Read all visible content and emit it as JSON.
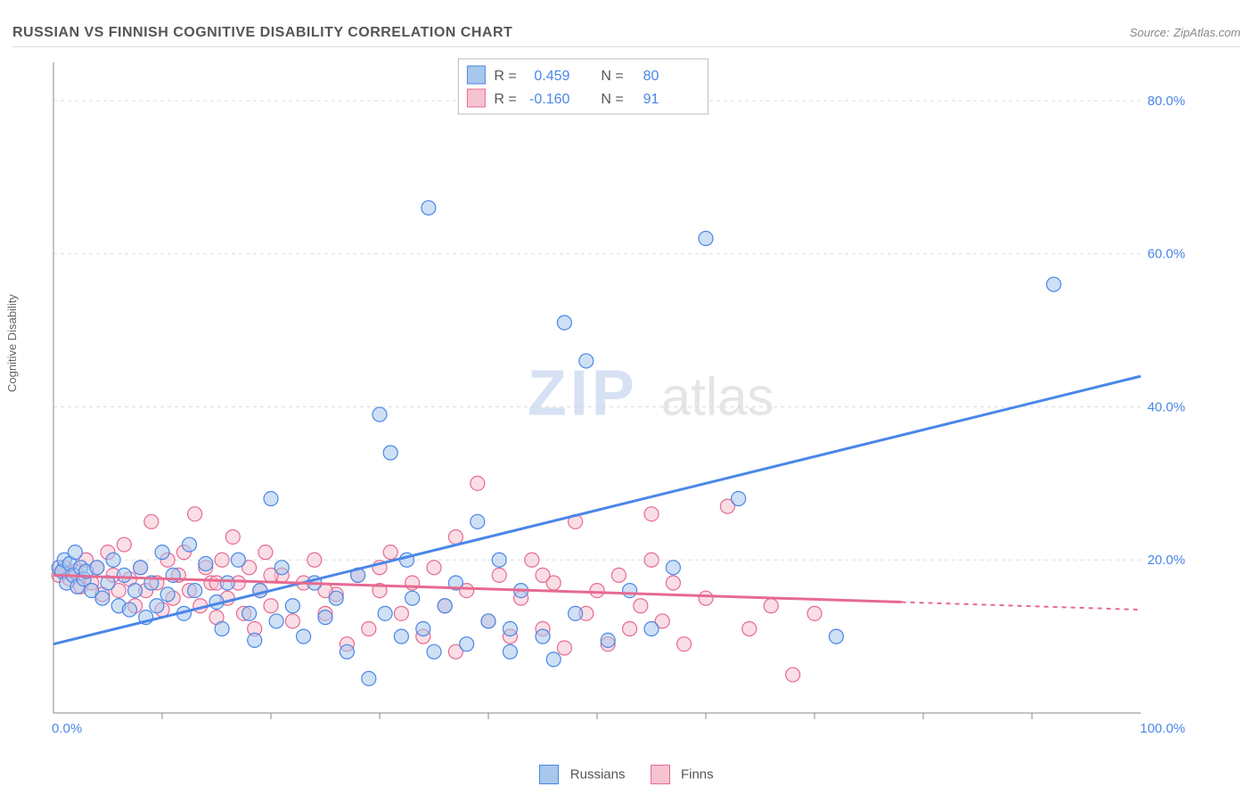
{
  "title": "RUSSIAN VS FINNISH COGNITIVE DISABILITY CORRELATION CHART",
  "source_label": "Source:",
  "source_name": "ZipAtlas.com",
  "y_axis_label": "Cognitive Disability",
  "watermark_prefix": "ZIP",
  "watermark_suffix": "atlas",
  "chart": {
    "type": "scatter",
    "background_color": "#ffffff",
    "grid_color": "#dddddd",
    "axis_color": "#888888",
    "xlim": [
      0,
      100
    ],
    "ylim": [
      0,
      85
    ],
    "x_tick_step": 10,
    "y_ticks": [
      20,
      40,
      60,
      80
    ],
    "y_tick_labels": [
      "20.0%",
      "40.0%",
      "60.0%",
      "80.0%"
    ],
    "x_start_label": "0.0%",
    "x_end_label": "100.0%",
    "marker_radius": 8,
    "marker_stroke_width": 1.2,
    "marker_opacity": 0.55,
    "line_width": 3
  },
  "series": [
    {
      "key": "russians",
      "label": "Russians",
      "fill_color": "#a8c7ec",
      "stroke_color": "#4a86e8",
      "R": "0.459",
      "N": "80",
      "trend": {
        "x1": 0,
        "y1": 9,
        "x2": 100,
        "y2": 44,
        "solid_until": 100
      },
      "points": [
        [
          0.5,
          19
        ],
        [
          0.8,
          18.5
        ],
        [
          1,
          20
        ],
        [
          1.2,
          17
        ],
        [
          1.5,
          19.5
        ],
        [
          1.8,
          18
        ],
        [
          2,
          21
        ],
        [
          2.2,
          16.5
        ],
        [
          2.5,
          19
        ],
        [
          2.8,
          17.5
        ],
        [
          3,
          18.5
        ],
        [
          3.5,
          16
        ],
        [
          4,
          19
        ],
        [
          4.5,
          15
        ],
        [
          5,
          17
        ],
        [
          5.5,
          20
        ],
        [
          6,
          14
        ],
        [
          6.5,
          18
        ],
        [
          7,
          13.5
        ],
        [
          7.5,
          16
        ],
        [
          8,
          19
        ],
        [
          8.5,
          12.5
        ],
        [
          9,
          17
        ],
        [
          9.5,
          14
        ],
        [
          10,
          21
        ],
        [
          10.5,
          15.5
        ],
        [
          11,
          18
        ],
        [
          12,
          13
        ],
        [
          12.5,
          22
        ],
        [
          13,
          16
        ],
        [
          14,
          19.5
        ],
        [
          15,
          14.5
        ],
        [
          15.5,
          11
        ],
        [
          16,
          17
        ],
        [
          17,
          20
        ],
        [
          18,
          13
        ],
        [
          18.5,
          9.5
        ],
        [
          19,
          16
        ],
        [
          20,
          28
        ],
        [
          20.5,
          12
        ],
        [
          21,
          19
        ],
        [
          22,
          14
        ],
        [
          23,
          10
        ],
        [
          24,
          17
        ],
        [
          25,
          12.5
        ],
        [
          26,
          15
        ],
        [
          27,
          8
        ],
        [
          28,
          18
        ],
        [
          29,
          4.5
        ],
        [
          30,
          39
        ],
        [
          30.5,
          13
        ],
        [
          31,
          34
        ],
        [
          32,
          10
        ],
        [
          32.5,
          20
        ],
        [
          33,
          15
        ],
        [
          34,
          11
        ],
        [
          34.5,
          66
        ],
        [
          35,
          8
        ],
        [
          36,
          14
        ],
        [
          37,
          17
        ],
        [
          38,
          9
        ],
        [
          39,
          25
        ],
        [
          40,
          12
        ],
        [
          41,
          20
        ],
        [
          42,
          11
        ],
        [
          43,
          16
        ],
        [
          45,
          10
        ],
        [
          46,
          7
        ],
        [
          47,
          51
        ],
        [
          48,
          13
        ],
        [
          49,
          46
        ],
        [
          51,
          9.5
        ],
        [
          53,
          16
        ],
        [
          55,
          11
        ],
        [
          57,
          19
        ],
        [
          60,
          62
        ],
        [
          63,
          28
        ],
        [
          72,
          10
        ],
        [
          92,
          56
        ],
        [
          42,
          8
        ]
      ]
    },
    {
      "key": "finns",
      "label": "Finns",
      "fill_color": "#f6c3d0",
      "stroke_color": "#e66a91",
      "R": "-0.160",
      "N": "91",
      "trend": {
        "x1": 0,
        "y1": 18,
        "x2": 100,
        "y2": 13.5,
        "solid_until": 78
      },
      "points": [
        [
          0.5,
          18
        ],
        [
          1,
          19
        ],
        [
          1.5,
          17.5
        ],
        [
          2,
          18.5
        ],
        [
          2.5,
          16.5
        ],
        [
          3,
          20
        ],
        [
          3.5,
          17
        ],
        [
          4,
          19
        ],
        [
          4.5,
          15.5
        ],
        [
          5,
          21
        ],
        [
          5.5,
          18
        ],
        [
          6,
          16
        ],
        [
          6.5,
          22
        ],
        [
          7,
          17.5
        ],
        [
          7.5,
          14
        ],
        [
          8,
          19
        ],
        [
          8.5,
          16
        ],
        [
          9,
          25
        ],
        [
          9.5,
          17
        ],
        [
          10,
          13.5
        ],
        [
          10.5,
          20
        ],
        [
          11,
          15
        ],
        [
          11.5,
          18
        ],
        [
          12,
          21
        ],
        [
          12.5,
          16
        ],
        [
          13,
          26
        ],
        [
          13.5,
          14
        ],
        [
          14,
          19
        ],
        [
          14.5,
          17
        ],
        [
          15,
          12.5
        ],
        [
          15.5,
          20
        ],
        [
          16,
          15
        ],
        [
          16.5,
          23
        ],
        [
          17,
          17
        ],
        [
          17.5,
          13
        ],
        [
          18,
          19
        ],
        [
          18.5,
          11
        ],
        [
          19,
          16
        ],
        [
          19.5,
          21
        ],
        [
          20,
          14
        ],
        [
          21,
          18
        ],
        [
          22,
          12
        ],
        [
          23,
          17
        ],
        [
          24,
          20
        ],
        [
          25,
          13
        ],
        [
          26,
          15.5
        ],
        [
          27,
          9
        ],
        [
          28,
          18
        ],
        [
          29,
          11
        ],
        [
          30,
          16
        ],
        [
          31,
          21
        ],
        [
          32,
          13
        ],
        [
          33,
          17
        ],
        [
          34,
          10
        ],
        [
          35,
          19
        ],
        [
          36,
          14
        ],
        [
          37,
          8
        ],
        [
          38,
          16
        ],
        [
          39,
          30
        ],
        [
          40,
          12
        ],
        [
          41,
          18
        ],
        [
          42,
          10
        ],
        [
          43,
          15
        ],
        [
          44,
          20
        ],
        [
          45,
          11
        ],
        [
          46,
          17
        ],
        [
          47,
          8.5
        ],
        [
          48,
          25
        ],
        [
          49,
          13
        ],
        [
          50,
          16
        ],
        [
          51,
          9
        ],
        [
          52,
          18
        ],
        [
          53,
          11
        ],
        [
          54,
          14
        ],
        [
          55,
          26
        ],
        [
          56,
          12
        ],
        [
          57,
          17
        ],
        [
          58,
          9
        ],
        [
          60,
          15
        ],
        [
          62,
          27
        ],
        [
          64,
          11
        ],
        [
          66,
          14
        ],
        [
          68,
          5
        ],
        [
          70,
          13
        ],
        [
          55,
          20
        ],
        [
          45,
          18
        ],
        [
          37,
          23
        ],
        [
          30,
          19
        ],
        [
          25,
          16
        ],
        [
          20,
          18
        ],
        [
          15,
          17
        ]
      ]
    }
  ],
  "stats_legend": {
    "R_label": "R =",
    "N_label": "N ="
  },
  "bottom_legend_order": [
    "russians",
    "finns"
  ]
}
